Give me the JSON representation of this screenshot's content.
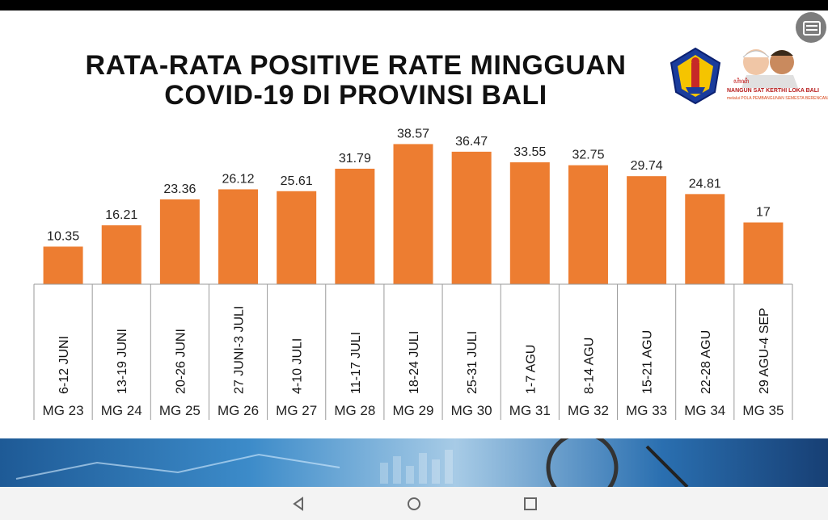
{
  "title_lines": [
    "RATA-RATA POSITIVE RATE MINGGUAN",
    "COVID-19 DI PROVINSI BALI"
  ],
  "logo_text": {
    "line1": "NANGUN SAT KERTHI LOKA BALI",
    "line2": "melalui POLA PEMBANGUNAN SEMESTA BERENCANA menuju BALI ERA BARU"
  },
  "chart_data": {
    "type": "bar",
    "title": "RATA-RATA POSITIVE RATE MINGGUAN COVID-19 DI PROVINSI BALI",
    "categories": [
      "6-12 JUNI",
      "13-19 JUNI",
      "20-26 JUNI",
      "27 JUNI-3 JULI",
      "4-10 JULI",
      "11-17 JULI",
      "18-24 JULI",
      "25-31 JULI",
      "1-7 AGU",
      "8-14 AGU",
      "15-21 AGU",
      "22-28 AGU",
      "29 AGU-4 SEP"
    ],
    "weeks": [
      "MG 23",
      "MG 24",
      "MG 25",
      "MG 26",
      "MG 27",
      "MG 28",
      "MG 29",
      "MG 30",
      "MG 31",
      "MG 32",
      "MG 33",
      "MG 34",
      "MG 35"
    ],
    "values": [
      10.35,
      16.21,
      23.36,
      26.12,
      25.61,
      31.79,
      38.57,
      36.47,
      33.55,
      32.75,
      29.74,
      24.81,
      17
    ],
    "value_labels": [
      "10.35",
      "16.21",
      "23.36",
      "26.12",
      "25.61",
      "31.79",
      "38.57",
      "36.47",
      "33.55",
      "32.75",
      "29.74",
      "24.81",
      "17"
    ],
    "bar_color": "#ED7D31",
    "xlabel": "",
    "ylabel": "",
    "ylim": [
      0,
      40
    ],
    "grid": false,
    "legend": "none"
  },
  "colors": {
    "accent": "#ED7D31",
    "banner": "#2a6fb0"
  },
  "nav_icons": [
    "back-icon",
    "home-icon",
    "recent-apps-icon"
  ]
}
